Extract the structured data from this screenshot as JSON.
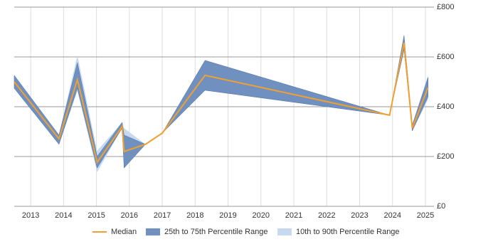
{
  "chart_data": {
    "type": "band-line",
    "x": [
      2012.5,
      2013.86,
      2014.42,
      2015.02,
      2015.78,
      2015.84,
      2016.49,
      2017.0,
      2018.3,
      2023.91,
      2024.35,
      2024.6,
      2025.08
    ],
    "series": [
      {
        "name": "10th to 90th Percentile Range",
        "color": "#c6d9ee",
        "lower": [
          474,
          249,
          463,
          137,
          314,
          154,
          249,
          294,
          466,
          366,
          629,
          303,
          429
        ],
        "upper": [
          526,
          286,
          606,
          223,
          337,
          314,
          249,
          294,
          586,
          366,
          686,
          326,
          526
        ]
      },
      {
        "name": "25th to 75th Percentile Range",
        "color": "#7090c0",
        "lower": [
          474,
          249,
          474,
          154,
          314,
          154,
          249,
          294,
          466,
          366,
          629,
          303,
          440
        ],
        "upper": [
          526,
          286,
          577,
          200,
          337,
          286,
          249,
          294,
          586,
          366,
          686,
          326,
          517
        ]
      },
      {
        "name": "Median",
        "color": "#f0a030",
        "values": [
          500,
          271,
          509,
          177,
          320,
          220,
          249,
          294,
          526,
          366,
          657,
          314,
          477
        ]
      }
    ],
    "xlim": [
      2012.5,
      2025.26
    ],
    "xticks": [
      2013,
      2014,
      2015,
      2016,
      2017,
      2018,
      2019,
      2020,
      2021,
      2022,
      2023,
      2024,
      2025
    ],
    "ylim": [
      0,
      800
    ],
    "yticks": [
      {
        "value": 0,
        "label": "£0"
      },
      {
        "value": 200,
        "label": "£200"
      },
      {
        "value": 400,
        "label": "£400"
      },
      {
        "value": 600,
        "label": "£600"
      },
      {
        "value": 800,
        "label": "£800"
      }
    ],
    "grid": true
  }
}
